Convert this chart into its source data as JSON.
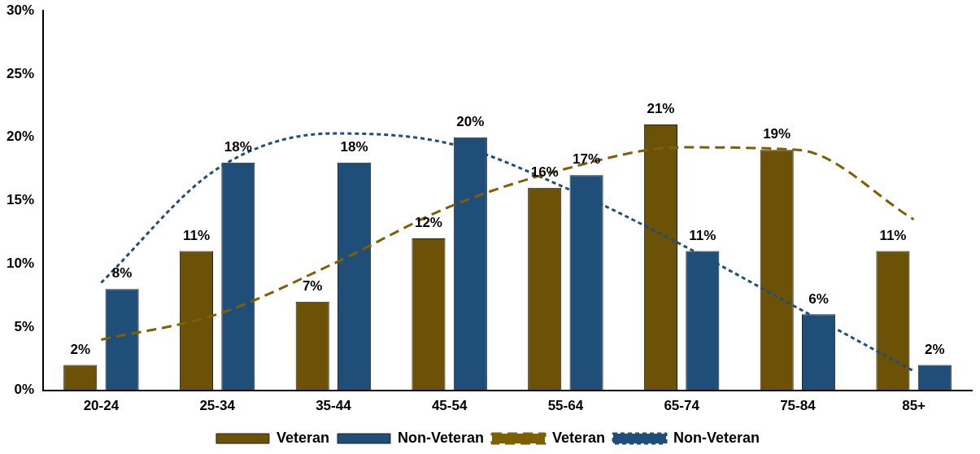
{
  "chart_data": {
    "type": "bar",
    "categories": [
      "20-24",
      "25-34",
      "35-44",
      "45-54",
      "55-64",
      "65-74",
      "75-84",
      "85+"
    ],
    "series": [
      {
        "name": "Veteran",
        "color": "#6b5206",
        "values": [
          2,
          11,
          7,
          12,
          16,
          21,
          19,
          11
        ],
        "value_labels": [
          "2%",
          "11%",
          "7%",
          "12%",
          "16%",
          "21%",
          "19%",
          "11%"
        ]
      },
      {
        "name": "Non-Veteran",
        "color": "#1f4e79",
        "values": [
          8,
          18,
          18,
          20,
          17,
          11,
          6,
          2
        ],
        "value_labels": [
          "8%",
          "18%",
          "18%",
          "20%",
          "17%",
          "11%",
          "6%",
          "2%"
        ]
      },
      {
        "name": "Veteran",
        "type": "line",
        "color": "#7f6000",
        "line_style": "dashed",
        "marker": "none",
        "x": [
          "20-24",
          "25-34",
          "35-44",
          "45-54",
          "55-64",
          "65-74",
          "75-84",
          "85+"
        ],
        "values": [
          4,
          6,
          10,
          14.5,
          17.5,
          19.2,
          19,
          13.5
        ]
      },
      {
        "name": "Non-Veteran",
        "type": "line",
        "color": "#1f4e79",
        "line_style": "dotted",
        "marker": "none",
        "x": [
          "20-24",
          "25-34",
          "35-44",
          "45-54",
          "55-64",
          "65-74",
          "75-84",
          "85+"
        ],
        "values": [
          8.5,
          17.5,
          20.3,
          19.5,
          16,
          11.5,
          6.5,
          1.5
        ]
      }
    ],
    "ylim": [
      0,
      30
    ],
    "yticks": [
      {
        "value": 0,
        "label": "0%"
      },
      {
        "value": 5,
        "label": "5%"
      },
      {
        "value": 10,
        "label": "10%"
      },
      {
        "value": 15,
        "label": "15%"
      },
      {
        "value": 20,
        "label": "20%"
      },
      {
        "value": 25,
        "label": "25%"
      },
      {
        "value": 30,
        "label": "30%"
      }
    ],
    "grid": false,
    "legend": "bottom"
  }
}
